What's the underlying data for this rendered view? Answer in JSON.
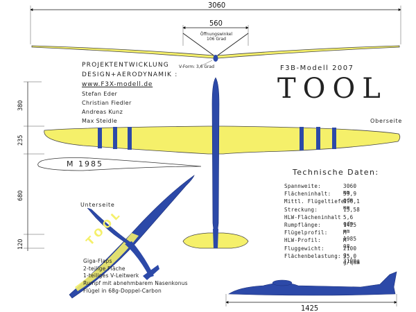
{
  "dimensions": {
    "span": "3060",
    "center_width": "560",
    "length": "1425",
    "h1": "380",
    "h2": "235",
    "h3": "680",
    "h4": "120"
  },
  "angle_label": "Öffnungswinkel\n106 Grad",
  "vform_label": "V-Form: 3,6 Grad",
  "credits": {
    "heading1": "PROJEKTENTWICKLUNG",
    "heading2": "DESIGN+AERODYNAMIK :",
    "website": "www.F3X-modell.de",
    "names": [
      "Stefan Eder",
      "Christian Fiedler",
      "Andreas Kunz",
      "Max Steidle"
    ]
  },
  "model": {
    "subtitle": "F3B-Modell 2007",
    "name": "TOOL"
  },
  "labels": {
    "top_side": "Oberseite",
    "bottom_side": "Unterseite",
    "airfoil": "M 1985",
    "wing_lettering": "TOOL"
  },
  "specs": {
    "title": "Technische Daten:",
    "rows": [
      {
        "label": "Spannweite:",
        "value": "3060 mm"
      },
      {
        "label": "Flächeninhalt:",
        "value": "59,9 qdm"
      },
      {
        "label": "Mittl. Flügeltiefe",
        "value": "196,1 mm"
      },
      {
        "label": "Streckung:",
        "value": "15,58"
      },
      {
        "label": "HLW-Flächeninhalt",
        "value": "5,6 qdm"
      },
      {
        "label": "Rumpflänge:",
        "value": "1425 mm"
      },
      {
        "label": "Flügelprofil:",
        "value": "M 1985"
      },
      {
        "label": "HLW-Profil:",
        "value": "M 08"
      },
      {
        "label": "Fluggewicht:",
        "value": "2100 g- 3100g"
      },
      {
        "label": "Flächenbelastung:",
        "value": "35,0 g/qdm"
      }
    ]
  },
  "features": [
    "Giga-Flaps",
    "2-teilige Fläche",
    "1-teiliges V-Leitwerk",
    "Rumpf mit abnehmbarem Nasenkonus",
    "Flügel in 68g-Doppel-Carbon"
  ],
  "colors": {
    "wing": "#f5f06a",
    "fuselage": "#2c49a8",
    "outline": "#444444"
  }
}
